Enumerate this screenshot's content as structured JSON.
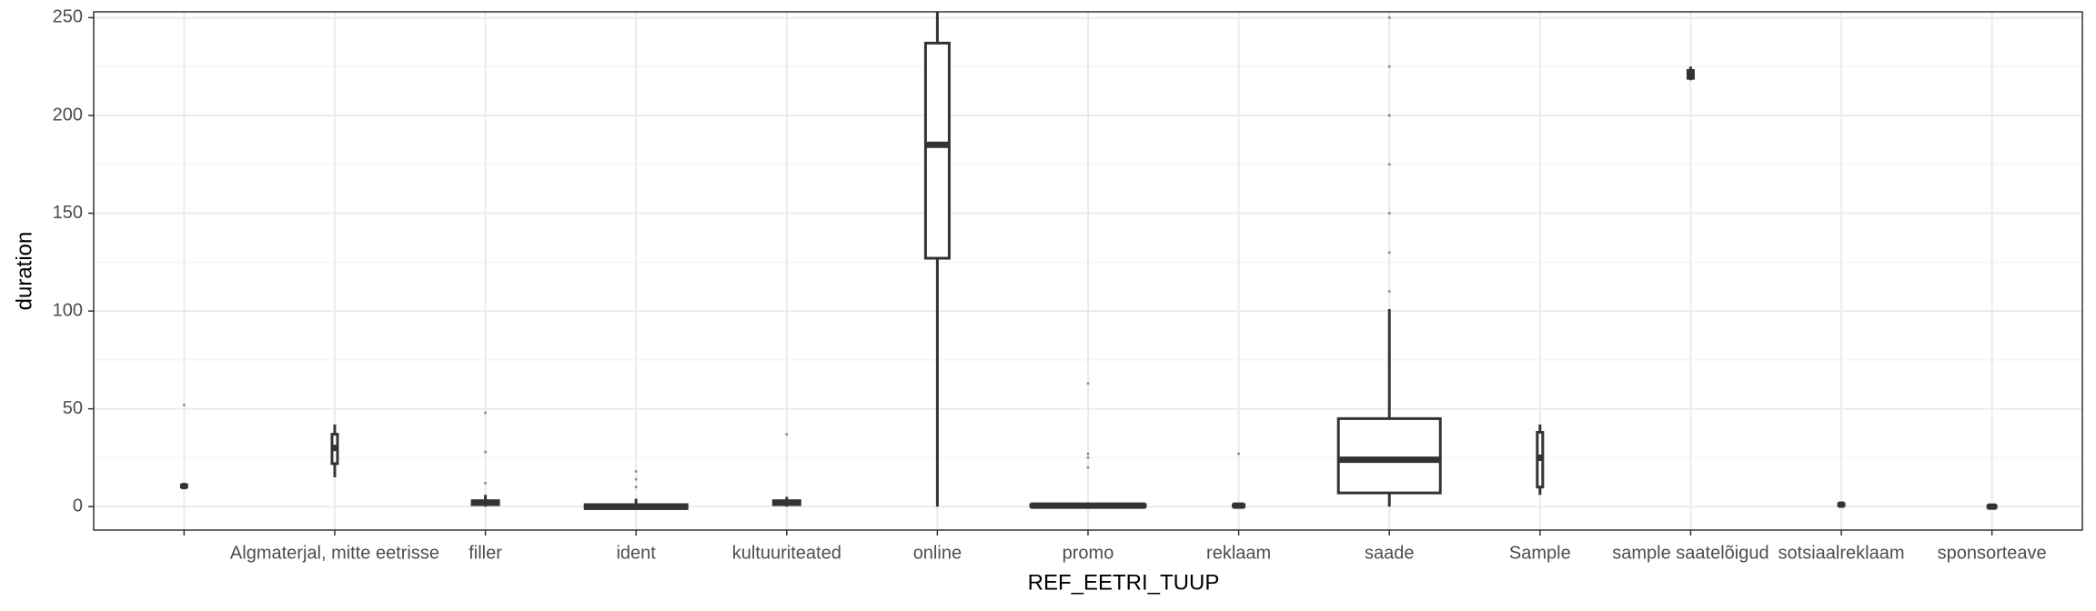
{
  "chart_data": {
    "type": "boxplot",
    "x_label": "REF_EETRI_TUUP",
    "y_label": "duration",
    "categories": [
      null,
      "Algmaterjal, mitte eetrisse",
      "filler",
      "ident",
      "kultuuriteated",
      "online",
      "promo",
      "reklaam",
      "saade",
      "Sample",
      "sample saatelõigud",
      "sotsiaalreklaam",
      "sponsorteave"
    ],
    "boxes": [
      {
        "min": 9.5,
        "q1": 10,
        "median": 10.5,
        "q3": 11,
        "max": 11.5,
        "outliers": [
          52
        ]
      },
      {
        "min": 15,
        "q1": 22,
        "median": 30,
        "q3": 37,
        "max": 42,
        "outliers": []
      },
      {
        "min": 0,
        "q1": 1,
        "median": 2,
        "q3": 3,
        "max": 6,
        "outliers": [
          12,
          28,
          48
        ]
      },
      {
        "min": -1,
        "q1": -1,
        "median": 0,
        "q3": 1,
        "max": 4,
        "outliers": [
          10,
          14,
          18
        ]
      },
      {
        "min": 0,
        "q1": 1,
        "median": 2,
        "q3": 3,
        "max": 5,
        "outliers": [
          37
        ]
      },
      {
        "min": 0,
        "q1": 127,
        "median": 185,
        "q3": 237,
        "max": 253,
        "outliers": []
      },
      {
        "min": -1,
        "q1": 0,
        "median": 0.5,
        "q3": 1,
        "max": 2,
        "outliers": [
          20,
          25,
          27,
          63
        ]
      },
      {
        "min": 0,
        "q1": 0,
        "median": 0.5,
        "q3": 1,
        "max": 1.5,
        "outliers": [
          27
        ]
      },
      {
        "min": 0,
        "q1": 7,
        "median": 24,
        "q3": 45,
        "max": 101,
        "outliers": [
          110,
          130,
          150,
          175,
          200,
          225,
          250
        ]
      },
      {
        "min": 6,
        "q1": 10,
        "median": 25,
        "q3": 38,
        "max": 42,
        "outliers": []
      },
      {
        "min": 218,
        "q1": 219,
        "median": 221,
        "q3": 223,
        "max": 225,
        "outliers": []
      },
      {
        "min": 0,
        "q1": 0.5,
        "median": 1,
        "q3": 1.5,
        "max": 2,
        "outliers": []
      },
      {
        "min": -1,
        "q1": -0.5,
        "median": 0,
        "q3": 0.5,
        "max": 1,
        "outliers": []
      }
    ],
    "color": "#333333",
    "ylim": [
      -12,
      253
    ],
    "yticks": [
      0,
      50,
      100,
      150,
      200,
      250
    ],
    "grid": true
  }
}
